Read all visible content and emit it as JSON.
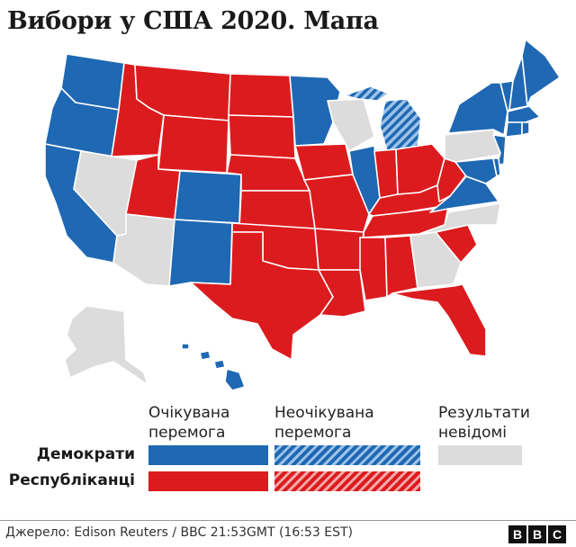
{
  "title": "Вибори у США 2020. Мапа",
  "colors": {
    "dem_expected": "#1f68b3",
    "rep_expected": "#dc1b1e",
    "unknown": "#dcdcdc",
    "border": "#ffffff"
  },
  "legend": {
    "columns": [
      {
        "line1": "Очікувана",
        "line2": "перемога"
      },
      {
        "line1": "Неочікувана",
        "line2": "перемога"
      },
      {
        "line1": "Результати",
        "line2": "невідомі"
      }
    ],
    "rows": [
      {
        "label": "Демократи"
      },
      {
        "label": "Республіканці"
      }
    ]
  },
  "states": {
    "WA": "dem",
    "OR": "dem",
    "CA": "dem",
    "NV": "unknown",
    "ID": "rep",
    "MT": "rep",
    "WY": "rep",
    "UT": "rep",
    "AZ": "unknown",
    "CO": "dem",
    "NM": "dem",
    "ND": "rep",
    "SD": "rep",
    "NE": "rep",
    "KS": "rep",
    "OK": "rep",
    "TX": "rep",
    "MN": "dem",
    "IA": "rep",
    "MO": "rep",
    "AR": "rep",
    "LA": "rep",
    "WI": "unknown",
    "IL": "dem",
    "MI": "dem-unexpected",
    "IN": "rep",
    "OH": "rep",
    "KY": "rep",
    "TN": "rep",
    "MS": "rep",
    "AL": "rep",
    "GA": "unknown",
    "FL": "rep",
    "SC": "rep",
    "NC": "unknown",
    "VA": "dem",
    "WV": "rep",
    "PA": "unknown",
    "NY": "dem",
    "VT": "dem",
    "NH": "dem",
    "ME": "dem",
    "MA": "dem",
    "CT": "dem",
    "RI": "dem",
    "NJ": "dem",
    "DE": "dem",
    "MD": "dem",
    "AK": "unknown",
    "HI": "dem"
  },
  "footer": {
    "source": "Джерело: Edison Reuters / BBC 21:53GMT (16:53 EST)",
    "logo": [
      "B",
      "B",
      "C"
    ]
  }
}
